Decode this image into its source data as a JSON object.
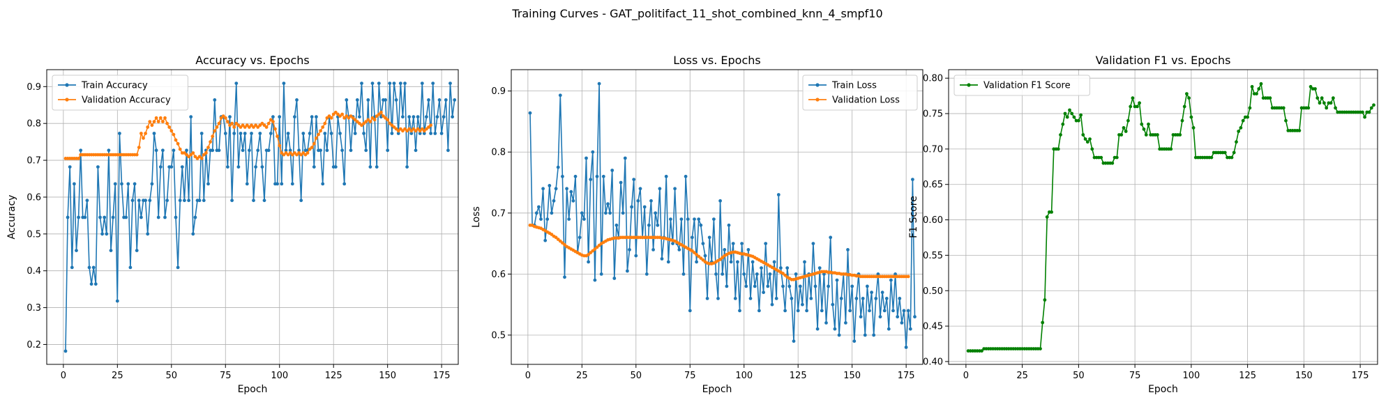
{
  "suptitle": "Training Curves - GAT_politifact_11_shot_combined_knn_4_smpf10",
  "colors": {
    "train": "#1f77b4",
    "validation": "#ff7f0e",
    "f1": "#008000",
    "grid": "#b0b0b0"
  },
  "chart_data": [
    {
      "type": "line",
      "title": "Accuracy vs. Epochs",
      "xlabel": "Epoch",
      "ylabel": "Accuracy",
      "xlim": [
        -7.7,
        182.7
      ],
      "ylim": [
        0.146,
        0.946
      ],
      "xticks": [
        0,
        25,
        50,
        75,
        100,
        125,
        150,
        175
      ],
      "yticks": [
        0.2,
        0.3,
        0.4,
        0.5,
        0.6,
        0.7,
        0.8,
        0.9
      ],
      "grid": true,
      "legend_position": "upper left",
      "series": [
        {
          "name": "Train Accuracy",
          "color": "#1f77b4",
          "values": [
            0.182,
            0.545,
            0.682,
            0.409,
            0.636,
            0.455,
            0.545,
            0.727,
            0.545,
            0.545,
            0.591,
            0.409,
            0.364,
            0.409,
            0.364,
            0.682,
            0.545,
            0.5,
            0.545,
            0.5,
            0.727,
            0.455,
            0.545,
            0.636,
            0.318,
            0.773,
            0.636,
            0.545,
            0.545,
            0.636,
            0.409,
            0.591,
            0.636,
            0.455,
            0.591,
            0.545,
            0.591,
            0.591,
            0.5,
            0.591,
            0.636,
            0.773,
            0.727,
            0.545,
            0.682,
            0.727,
            0.545,
            0.591,
            0.682,
            0.682,
            0.727,
            0.545,
            0.409,
            0.591,
            0.682,
            0.591,
            0.727,
            0.591,
            0.818,
            0.5,
            0.545,
            0.591,
            0.591,
            0.773,
            0.591,
            0.727,
            0.636,
            0.727,
            0.727,
            0.864,
            0.727,
            0.727,
            0.818,
            0.818,
            0.773,
            0.682,
            0.818,
            0.591,
            0.773,
            0.909,
            0.682,
            0.773,
            0.727,
            0.773,
            0.636,
            0.727,
            0.773,
            0.591,
            0.682,
            0.727,
            0.773,
            0.682,
            0.591,
            0.727,
            0.727,
            0.773,
            0.818,
            0.636,
            0.636,
            0.818,
            0.636,
            0.909,
            0.727,
            0.773,
            0.727,
            0.636,
            0.818,
            0.864,
            0.727,
            0.591,
            0.773,
            0.727,
            0.727,
            0.773,
            0.818,
            0.682,
            0.818,
            0.727,
            0.727,
            0.636,
            0.773,
            0.727,
            0.818,
            0.773,
            0.682,
            0.682,
            0.818,
            0.773,
            0.727,
            0.636,
            0.864,
            0.818,
            0.727,
            0.818,
            0.773,
            0.864,
            0.818,
            0.909,
            0.773,
            0.727,
            0.864,
            0.682,
            0.909,
            0.818,
            0.682,
            0.909,
            0.818,
            0.864,
            0.864,
            0.727,
            0.909,
            0.773,
            0.909,
            0.864,
            0.773,
            0.909,
            0.818,
            0.909,
            0.682,
            0.818,
            0.773,
            0.818,
            0.727,
            0.818,
            0.773,
            0.909,
            0.773,
            0.818,
            0.864,
            0.773,
            0.909,
            0.773,
            0.818,
            0.864,
            0.773,
            0.818,
            0.864,
            0.727,
            0.909,
            0.818,
            0.864
          ]
        },
        {
          "name": "Validation Accuracy",
          "color": "#ff7f0e",
          "values": [
            0.705,
            0.705,
            0.705,
            0.705,
            0.705,
            0.705,
            0.705,
            0.715,
            0.715,
            0.715,
            0.715,
            0.715,
            0.715,
            0.715,
            0.715,
            0.715,
            0.715,
            0.715,
            0.715,
            0.715,
            0.715,
            0.715,
            0.715,
            0.715,
            0.715,
            0.715,
            0.715,
            0.715,
            0.715,
            0.715,
            0.715,
            0.715,
            0.715,
            0.715,
            0.735,
            0.773,
            0.76,
            0.773,
            0.79,
            0.805,
            0.795,
            0.805,
            0.815,
            0.805,
            0.815,
            0.805,
            0.815,
            0.8,
            0.79,
            0.78,
            0.77,
            0.755,
            0.745,
            0.73,
            0.72,
            0.72,
            0.715,
            0.71,
            0.715,
            0.72,
            0.71,
            0.705,
            0.71,
            0.705,
            0.715,
            0.72,
            0.735,
            0.75,
            0.765,
            0.78,
            0.79,
            0.8,
            0.815,
            0.82,
            0.815,
            0.805,
            0.795,
            0.8,
            0.79,
            0.8,
            0.795,
            0.79,
            0.795,
            0.79,
            0.795,
            0.79,
            0.795,
            0.79,
            0.795,
            0.79,
            0.795,
            0.8,
            0.795,
            0.79,
            0.8,
            0.81,
            0.805,
            0.785,
            0.765,
            0.74,
            0.72,
            0.715,
            0.72,
            0.715,
            0.72,
            0.715,
            0.72,
            0.715,
            0.72,
            0.715,
            0.72,
            0.715,
            0.72,
            0.73,
            0.735,
            0.745,
            0.76,
            0.77,
            0.78,
            0.79,
            0.8,
            0.815,
            0.82,
            0.815,
            0.825,
            0.83,
            0.825,
            0.82,
            0.825,
            0.815,
            0.82,
            0.815,
            0.82,
            0.815,
            0.81,
            0.805,
            0.8,
            0.795,
            0.8,
            0.805,
            0.81,
            0.805,
            0.815,
            0.81,
            0.82,
            0.825,
            0.83,
            0.82,
            0.815,
            0.81,
            0.8,
            0.795,
            0.79,
            0.785,
            0.78,
            0.785,
            0.78,
            0.785,
            0.78,
            0.785,
            0.78,
            0.785,
            0.78,
            0.785,
            0.78,
            0.785,
            0.78,
            0.785,
            0.79,
            0.795
          ]
        }
      ]
    },
    {
      "type": "line",
      "title": "Loss vs. Epochs",
      "xlabel": "Epoch",
      "ylabel": "Loss",
      "xlim": [
        -7.7,
        182.7
      ],
      "ylim": [
        0.452,
        0.935
      ],
      "xticks": [
        0,
        25,
        50,
        75,
        100,
        125,
        150,
        175
      ],
      "yticks": [
        0.5,
        0.6,
        0.7,
        0.8,
        0.9
      ],
      "grid": true,
      "legend_position": "upper right",
      "series": [
        {
          "name": "Train Loss",
          "color": "#1f77b4",
          "values": [
            0.864,
            0.68,
            0.68,
            0.7,
            0.71,
            0.69,
            0.74,
            0.655,
            0.69,
            0.745,
            0.7,
            0.72,
            0.74,
            0.775,
            0.893,
            0.76,
            0.595,
            0.74,
            0.69,
            0.735,
            0.72,
            0.76,
            0.635,
            0.66,
            0.7,
            0.69,
            0.79,
            0.62,
            0.755,
            0.8,
            0.59,
            0.76,
            0.912,
            0.6,
            0.76,
            0.7,
            0.715,
            0.7,
            0.77,
            0.593,
            0.68,
            0.66,
            0.75,
            0.7,
            0.79,
            0.605,
            0.64,
            0.71,
            0.755,
            0.63,
            0.72,
            0.74,
            0.66,
            0.71,
            0.6,
            0.68,
            0.72,
            0.64,
            0.7,
            0.68,
            0.74,
            0.625,
            0.66,
            0.76,
            0.62,
            0.69,
            0.65,
            0.74,
            0.65,
            0.64,
            0.69,
            0.6,
            0.76,
            0.69,
            0.54,
            0.66,
            0.69,
            0.62,
            0.69,
            0.68,
            0.65,
            0.63,
            0.56,
            0.66,
            0.62,
            0.69,
            0.6,
            0.56,
            0.72,
            0.6,
            0.64,
            0.58,
            0.68,
            0.62,
            0.65,
            0.56,
            0.62,
            0.54,
            0.65,
            0.6,
            0.58,
            0.64,
            0.56,
            0.62,
            0.58,
            0.6,
            0.54,
            0.61,
            0.57,
            0.65,
            0.58,
            0.6,
            0.55,
            0.62,
            0.56,
            0.73,
            0.61,
            0.58,
            0.54,
            0.61,
            0.58,
            0.56,
            0.49,
            0.6,
            0.54,
            0.58,
            0.55,
            0.62,
            0.54,
            0.6,
            0.56,
            0.65,
            0.58,
            0.51,
            0.61,
            0.54,
            0.6,
            0.52,
            0.58,
            0.66,
            0.55,
            0.51,
            0.59,
            0.5,
            0.56,
            0.6,
            0.52,
            0.64,
            0.54,
            0.58,
            0.49,
            0.56,
            0.6,
            0.53,
            0.56,
            0.5,
            0.58,
            0.54,
            0.57,
            0.5,
            0.56,
            0.6,
            0.53,
            0.57,
            0.54,
            0.56,
            0.51,
            0.59,
            0.54,
            0.6,
            0.53,
            0.56,
            0.52,
            0.54,
            0.48,
            0.54,
            0.51,
            0.755,
            0.53
          ]
        },
        {
          "name": "Validation Loss",
          "color": "#ff7f0e",
          "values": [
            0.68,
            0.68,
            0.678,
            0.677,
            0.676,
            0.675,
            0.673,
            0.671,
            0.669,
            0.667,
            0.665,
            0.662,
            0.66,
            0.657,
            0.654,
            0.651,
            0.648,
            0.645,
            0.643,
            0.641,
            0.639,
            0.637,
            0.635,
            0.633,
            0.631,
            0.63,
            0.63,
            0.632,
            0.635,
            0.638,
            0.641,
            0.644,
            0.647,
            0.65,
            0.652,
            0.654,
            0.656,
            0.657,
            0.658,
            0.659,
            0.659,
            0.659,
            0.66,
            0.66,
            0.66,
            0.66,
            0.66,
            0.66,
            0.66,
            0.66,
            0.66,
            0.66,
            0.66,
            0.66,
            0.66,
            0.66,
            0.66,
            0.66,
            0.66,
            0.66,
            0.66,
            0.659,
            0.659,
            0.658,
            0.657,
            0.656,
            0.655,
            0.654,
            0.652,
            0.65,
            0.648,
            0.646,
            0.644,
            0.642,
            0.64,
            0.638,
            0.635,
            0.632,
            0.629,
            0.626,
            0.623,
            0.62,
            0.618,
            0.617,
            0.617,
            0.618,
            0.62,
            0.622,
            0.624,
            0.627,
            0.63,
            0.632,
            0.634,
            0.635,
            0.636,
            0.636,
            0.635,
            0.634,
            0.633,
            0.633,
            0.632,
            0.631,
            0.63,
            0.629,
            0.627,
            0.625,
            0.623,
            0.621,
            0.619,
            0.617,
            0.615,
            0.613,
            0.611,
            0.609,
            0.607,
            0.605,
            0.603,
            0.601,
            0.598,
            0.595,
            0.593,
            0.591,
            0.591,
            0.592,
            0.593,
            0.594,
            0.595,
            0.596,
            0.597,
            0.598,
            0.599,
            0.6,
            0.601,
            0.602,
            0.603,
            0.604,
            0.604,
            0.604,
            0.603,
            0.603,
            0.602,
            0.602,
            0.601,
            0.601,
            0.6,
            0.6,
            0.6,
            0.599,
            0.599,
            0.598,
            0.598,
            0.597,
            0.597,
            0.596,
            0.596,
            0.596,
            0.596,
            0.596,
            0.596,
            0.596,
            0.596,
            0.596,
            0.596,
            0.596,
            0.596,
            0.596,
            0.596,
            0.596,
            0.596,
            0.596,
            0.596,
            0.596,
            0.596,
            0.596,
            0.596,
            0.596
          ]
        }
      ]
    },
    {
      "type": "line",
      "title": "Validation F1 vs. Epochs",
      "xlabel": "Epoch",
      "ylabel": "F1 Score",
      "xlim": [
        -7.7,
        182.7
      ],
      "ylim": [
        0.396,
        0.812
      ],
      "xticks": [
        0,
        25,
        50,
        75,
        100,
        125,
        150,
        175
      ],
      "yticks": [
        0.4,
        0.45,
        0.5,
        0.55,
        0.6,
        0.65,
        0.7,
        0.75,
        0.8
      ],
      "grid": true,
      "legend_position": "upper left",
      "series": [
        {
          "name": "Validation F1 Score",
          "color": "#008000",
          "values": [
            0.415,
            0.415,
            0.415,
            0.415,
            0.415,
            0.415,
            0.415,
            0.418,
            0.418,
            0.418,
            0.418,
            0.418,
            0.418,
            0.418,
            0.418,
            0.418,
            0.418,
            0.418,
            0.418,
            0.418,
            0.418,
            0.418,
            0.418,
            0.418,
            0.418,
            0.418,
            0.418,
            0.418,
            0.418,
            0.418,
            0.418,
            0.418,
            0.418,
            0.455,
            0.487,
            0.604,
            0.611,
            0.611,
            0.7,
            0.7,
            0.7,
            0.72,
            0.735,
            0.75,
            0.745,
            0.755,
            0.75,
            0.745,
            0.74,
            0.74,
            0.748,
            0.72,
            0.714,
            0.71,
            0.714,
            0.7,
            0.688,
            0.688,
            0.688,
            0.688,
            0.68,
            0.68,
            0.68,
            0.68,
            0.68,
            0.688,
            0.688,
            0.72,
            0.72,
            0.73,
            0.725,
            0.74,
            0.76,
            0.772,
            0.76,
            0.76,
            0.765,
            0.735,
            0.728,
            0.72,
            0.735,
            0.72,
            0.72,
            0.72,
            0.72,
            0.7,
            0.7,
            0.7,
            0.7,
            0.7,
            0.7,
            0.72,
            0.72,
            0.72,
            0.72,
            0.74,
            0.76,
            0.778,
            0.772,
            0.745,
            0.73,
            0.688,
            0.688,
            0.688,
            0.688,
            0.688,
            0.688,
            0.688,
            0.688,
            0.695,
            0.695,
            0.695,
            0.695,
            0.695,
            0.695,
            0.688,
            0.688,
            0.688,
            0.695,
            0.71,
            0.725,
            0.73,
            0.74,
            0.745,
            0.745,
            0.758,
            0.788,
            0.778,
            0.778,
            0.785,
            0.792,
            0.772,
            0.772,
            0.772,
            0.772,
            0.758,
            0.758,
            0.758,
            0.758,
            0.758,
            0.758,
            0.74,
            0.726,
            0.726,
            0.726,
            0.726,
            0.726,
            0.726,
            0.758,
            0.758,
            0.758,
            0.758,
            0.788,
            0.785,
            0.785,
            0.772,
            0.765,
            0.772,
            0.765,
            0.758,
            0.765,
            0.765,
            0.772,
            0.758,
            0.752,
            0.752,
            0.752,
            0.752,
            0.752,
            0.752,
            0.752,
            0.752,
            0.752,
            0.752,
            0.752,
            0.752,
            0.745,
            0.752,
            0.752,
            0.758,
            0.762
          ]
        }
      ]
    }
  ]
}
